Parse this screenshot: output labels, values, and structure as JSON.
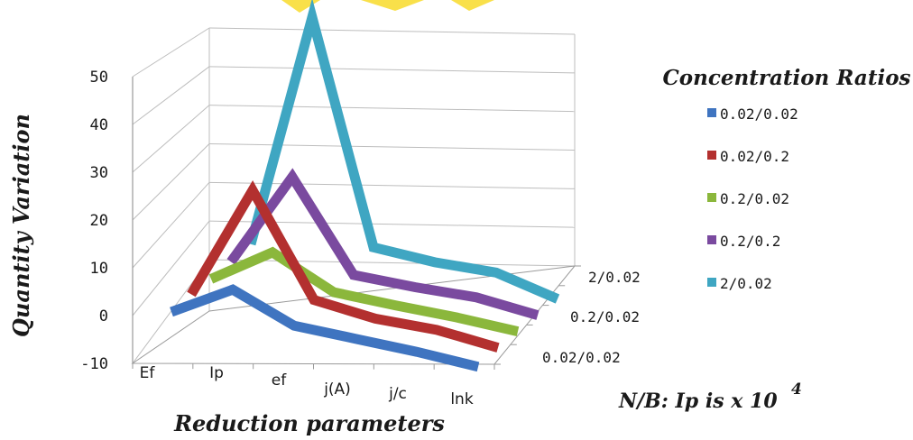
{
  "chart_data": {
    "type": "line",
    "style": "3d",
    "categories": [
      "Ef",
      "Ip",
      "ef",
      "j(A)",
      "j/c",
      "lnk"
    ],
    "ylim": [
      -10,
      50
    ],
    "yticks": [
      "50",
      "40",
      "30",
      "20",
      "10",
      "0",
      "-10"
    ],
    "depth_labels": [
      "2/0.02",
      "0.2/0.02",
      "0.02/0.02"
    ],
    "xlabel": "Reduction parameters",
    "ylabel": "Quantity Variation",
    "legend": {
      "title": "Concentration Ratios",
      "position": "right"
    },
    "series": [
      {
        "name": "0.02/0.02",
        "color": "#3f74c0",
        "values": [
          0.2,
          6.6,
          0.8,
          -0.2,
          -1.2,
          -2.6
        ]
      },
      {
        "name": "0.02/0.2",
        "color": "#b3302f",
        "values": [
          0.5,
          24.0,
          2.8,
          0.6,
          0.0,
          -2.0
        ]
      },
      {
        "name": "0.2/0.02",
        "color": "#8bb73c",
        "values": [
          0.3,
          7.6,
          1.0,
          0.0,
          -0.8,
          -2.0
        ]
      },
      {
        "name": "0.2/0.2",
        "color": "#7a4a9f",
        "values": [
          0.5,
          20.0,
          1.2,
          0.4,
          0.0,
          -2.0
        ]
      },
      {
        "name": "2/0.02",
        "color": "#3fa6c2",
        "values": [
          0.8,
          50.0,
          3.6,
          2.2,
          1.8,
          -2.0
        ]
      }
    ],
    "grid": true,
    "note": "N/B: Ip is x 10",
    "note_superscript": "4"
  }
}
